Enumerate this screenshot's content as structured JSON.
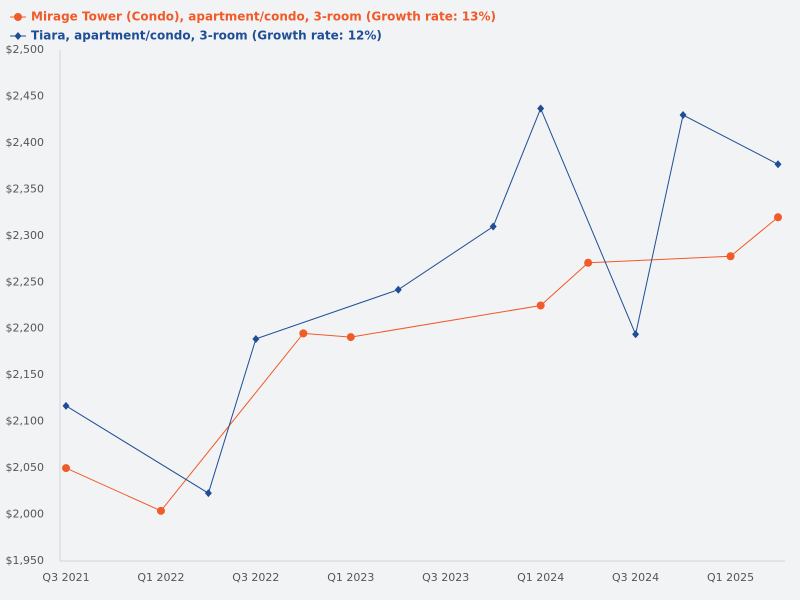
{
  "chart_data": {
    "type": "line",
    "categories": [
      "Q3 2021",
      null,
      "Q1 2022",
      null,
      "Q3 2022",
      null,
      "Q1 2023",
      null,
      "Q3 2023",
      null,
      "Q1 2024",
      null,
      "Q3 2024",
      null,
      "Q1 2025",
      null
    ],
    "series": [
      {
        "name": "Mirage Tower (Condo), apartment/condo, 3-room (Growth rate: 13%)",
        "color": "#f15a29",
        "marker": "circle",
        "values": [
          2050,
          null,
          2004,
          null,
          null,
          2195,
          2191,
          null,
          null,
          null,
          2225,
          2271,
          null,
          null,
          2278,
          2320
        ]
      },
      {
        "name": "Tiara, apartment/condo, 3-room (Growth rate: 12%)",
        "color": "#1f4e96",
        "marker": "diamond",
        "values": [
          2117,
          null,
          null,
          2023,
          2189,
          null,
          null,
          2242,
          null,
          2310,
          2437,
          null,
          2194,
          2430,
          null,
          2377
        ]
      }
    ],
    "connect_gaps": true,
    "ylim": [
      1950,
      2500
    ],
    "yticks": [
      {
        "value": 1950,
        "label": "$1,950"
      },
      {
        "value": 2000,
        "label": "$2,000"
      },
      {
        "value": 2050,
        "label": "$2,050"
      },
      {
        "value": 2100,
        "label": "$2,100"
      },
      {
        "value": 2150,
        "label": "$2,150"
      },
      {
        "value": 2200,
        "label": "$2,200"
      },
      {
        "value": 2250,
        "label": "$2,250"
      },
      {
        "value": 2300,
        "label": "$2,300"
      },
      {
        "value": 2350,
        "label": "$2,350"
      },
      {
        "value": 2400,
        "label": "$2,400"
      },
      {
        "value": 2450,
        "label": "$2,450"
      },
      {
        "value": 2500,
        "label": "$2,500"
      }
    ],
    "grid": false
  }
}
